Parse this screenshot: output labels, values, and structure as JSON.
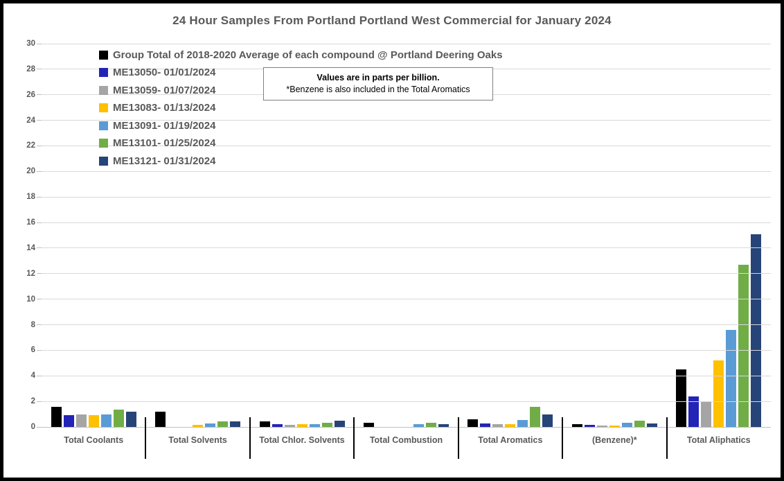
{
  "title": "24 Hour Samples From Portland Portland West Commercial for January 2024",
  "annotation": {
    "line1": "Values are in parts per billion.",
    "line2": "*Benzene is also included in the Total Aromatics"
  },
  "colors": {
    "text_gray": "#595959",
    "gridline": "#D9D9D9",
    "axis": "#BFBFBF",
    "separator": "#000000",
    "note_border": "#7F7F7F"
  },
  "chart_data": {
    "type": "bar",
    "title": "24 Hour Samples From Portland Portland West Commercial for January 2024",
    "categories": [
      "Total Coolants",
      "Total Solvents",
      "Total Chlor. Solvents",
      "Total Combustion",
      "Total Aromatics",
      "(Benzene)*",
      "Total Aliphatics"
    ],
    "series": [
      {
        "name": "Group Total of 2018-2020 Average of each compound @ Portland Deering Oaks",
        "color": "#000000",
        "values": [
          1.6,
          1.2,
          0.45,
          0.3,
          0.6,
          0.2,
          4.5
        ]
      },
      {
        "name": "ME13050- 01/01/2024",
        "color": "#2323B8",
        "values": [
          0.95,
          0,
          0.2,
          0,
          0.25,
          0.15,
          2.4
        ]
      },
      {
        "name": "ME13059- 01/07/2024",
        "color": "#A5A5A5",
        "values": [
          1.0,
          0,
          0.18,
          0,
          0.2,
          0.13,
          2.0
        ]
      },
      {
        "name": "ME13083- 01/13/2024",
        "color": "#FFC000",
        "values": [
          0.9,
          0.15,
          0.2,
          0,
          0.2,
          0.12,
          5.2
        ]
      },
      {
        "name": "ME13091- 01/19/2024",
        "color": "#5B9BD5",
        "values": [
          1.0,
          0.25,
          0.2,
          0.2,
          0.55,
          0.3,
          7.6
        ]
      },
      {
        "name": "ME13101- 01/25/2024",
        "color": "#70AD47",
        "values": [
          1.35,
          0.45,
          0.3,
          0.3,
          1.55,
          0.5,
          12.7
        ]
      },
      {
        "name": "ME13121- 01/31/2024",
        "color": "#264478",
        "values": [
          1.2,
          0.45,
          0.5,
          0.2,
          1.0,
          0.25,
          15.1
        ]
      }
    ],
    "ylim": [
      0,
      30
    ],
    "ytick_step": 2,
    "grid": true,
    "legend_position": "top-left-inside",
    "ylabel": "",
    "xlabel": ""
  }
}
